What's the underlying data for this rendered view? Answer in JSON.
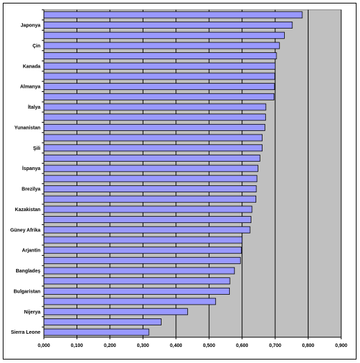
{
  "chart_data": {
    "type": "bar",
    "orientation": "horizontal",
    "categories": [
      "",
      "Japonya",
      "",
      "Çin",
      "",
      "Kanada",
      "",
      "Almanya",
      "",
      "İtalya",
      "",
      "Yunanistan",
      "",
      "Şili",
      "",
      "İspanya",
      "",
      "Brezilya",
      "",
      "Kazakistan",
      "",
      "Güney Afrika",
      "",
      "Arjantin",
      "",
      "Bangladeş",
      "",
      "Bulgaristan",
      "",
      "Nijerya",
      "",
      "Sierra Leone"
    ],
    "values": [
      0.782,
      0.752,
      0.728,
      0.713,
      0.704,
      0.7,
      0.699,
      0.698,
      0.697,
      0.672,
      0.671,
      0.669,
      0.661,
      0.661,
      0.654,
      0.648,
      0.645,
      0.643,
      0.642,
      0.63,
      0.627,
      0.624,
      0.6,
      0.598,
      0.595,
      0.577,
      0.563,
      0.562,
      0.52,
      0.435,
      0.355,
      0.318
    ],
    "xlim": [
      0,
      0.9
    ],
    "x_ticks": [
      "0,000",
      "0,100",
      "0,200",
      "0,300",
      "0,400",
      "0,500",
      "0,600",
      "0,700",
      "0,800",
      "0,900"
    ],
    "grid": true,
    "bar_color": "#9999ff",
    "plot_background": "#c0c0c0",
    "title": "",
    "xlabel": "",
    "ylabel": ""
  }
}
